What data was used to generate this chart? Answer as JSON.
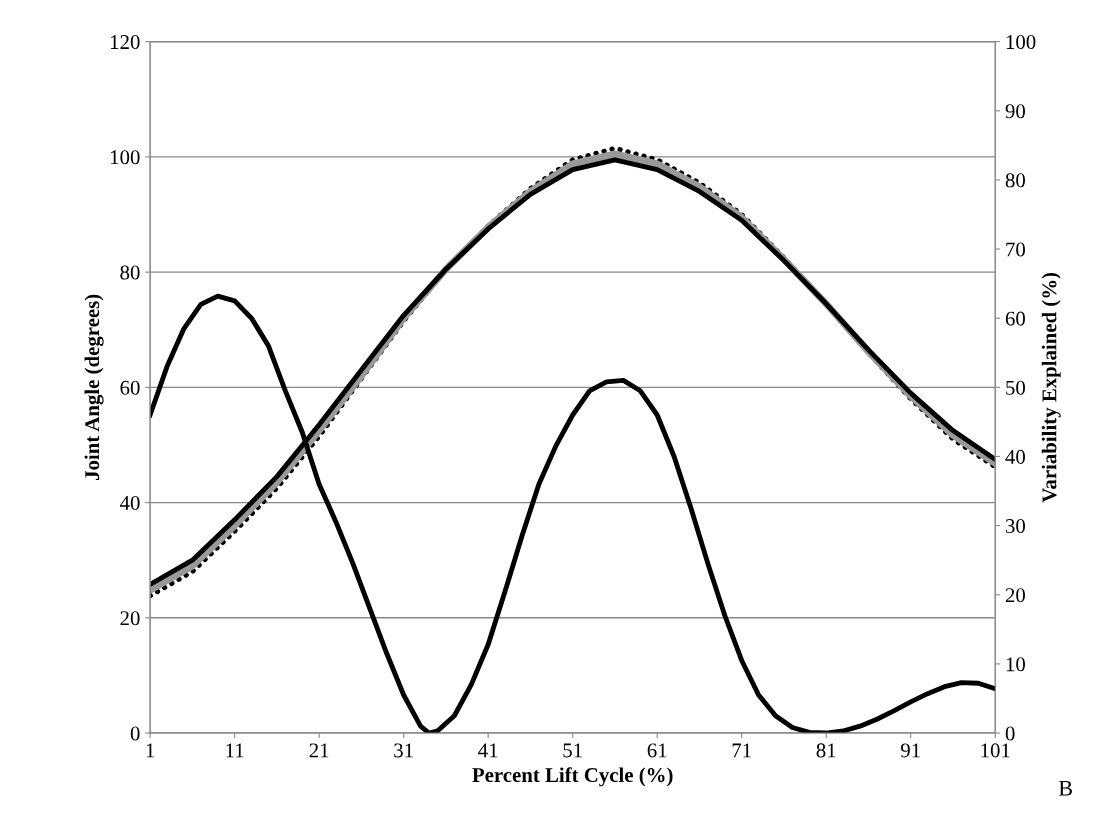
{
  "chart_data": {
    "type": "line",
    "xlabel": "Percent Lift Cycle (%)",
    "ylabel": "Joint Angle (degrees)",
    "y2label": "Variability Explained (%)",
    "annotations": [
      "B"
    ],
    "xlim": [
      1,
      101
    ],
    "xticks": [
      1,
      11,
      21,
      31,
      41,
      51,
      61,
      71,
      81,
      91,
      101
    ],
    "ylim": [
      0,
      120
    ],
    "yticks": [
      0,
      20,
      40,
      60,
      80,
      100,
      120
    ],
    "y2lim": [
      0,
      100
    ],
    "y2ticks": [
      0,
      10,
      20,
      30,
      40,
      50,
      60,
      70,
      80,
      90,
      100
    ],
    "grid": "y",
    "marker": "none",
    "x": [
      1,
      6,
      11,
      16,
      21,
      26,
      31,
      36,
      41,
      46,
      51,
      56,
      61,
      66,
      71,
      76,
      81,
      86,
      91,
      96,
      101
    ],
    "series": [
      {
        "color": "#000000",
        "line_style": "dotted",
        "values": [
          23.8,
          28,
          35,
          42.5,
          51.5,
          61.5,
          71.5,
          80.5,
          88,
          94.5,
          99.5,
          101.5,
          99.5,
          95.5,
          90,
          82.5,
          74.5,
          66,
          58,
          51,
          46.2
        ]
      },
      {
        "color": "#999999",
        "line_style": "solid",
        "values": [
          24.8,
          29,
          36,
          43.5,
          52.5,
          62,
          72,
          80.5,
          87.8,
          94,
          98.8,
          100.5,
          98.8,
          94.8,
          89.5,
          82.2,
          74.5,
          66.2,
          58.5,
          51.7,
          46.8
        ]
      },
      {
        "color": "#000000",
        "line_style": "solid",
        "values": [
          25.8,
          30,
          37,
          44.5,
          53.5,
          63,
          72.5,
          80.5,
          87.5,
          93.5,
          97.8,
          99.5,
          97.8,
          94,
          89,
          82,
          74.5,
          66.5,
          59,
          52.5,
          47.5
        ]
      },
      {
        "color": "#000000",
        "line_style": "solid",
        "axis": "y2",
        "x": [
          1,
          3,
          5,
          7,
          9,
          11,
          13,
          15,
          17,
          19,
          21,
          23,
          25,
          27,
          29,
          31,
          33,
          34,
          35,
          37,
          39,
          41,
          43,
          45,
          47,
          49,
          51,
          53,
          55,
          57,
          59,
          61,
          63,
          65,
          67,
          69,
          71,
          73,
          75,
          77,
          79,
          81,
          83,
          85,
          87,
          89,
          91,
          93,
          95,
          97,
          99,
          101
        ],
        "values": [
          46,
          53,
          58.5,
          62,
          63.2,
          62.5,
          60,
          56,
          49.5,
          43.5,
          36,
          30.5,
          24.5,
          18,
          11.5,
          5.5,
          1,
          0,
          0.3,
          2.5,
          7,
          12.8,
          20.5,
          28.5,
          36,
          41.5,
          46,
          49.5,
          50.8,
          51,
          49.5,
          46,
          40,
          32.5,
          24.5,
          17,
          10.5,
          5.5,
          2.5,
          0.8,
          0.1,
          0,
          0.3,
          1,
          2,
          3.2,
          4.5,
          5.7,
          6.7,
          7.3,
          7.2,
          6.4
        ]
      }
    ]
  }
}
